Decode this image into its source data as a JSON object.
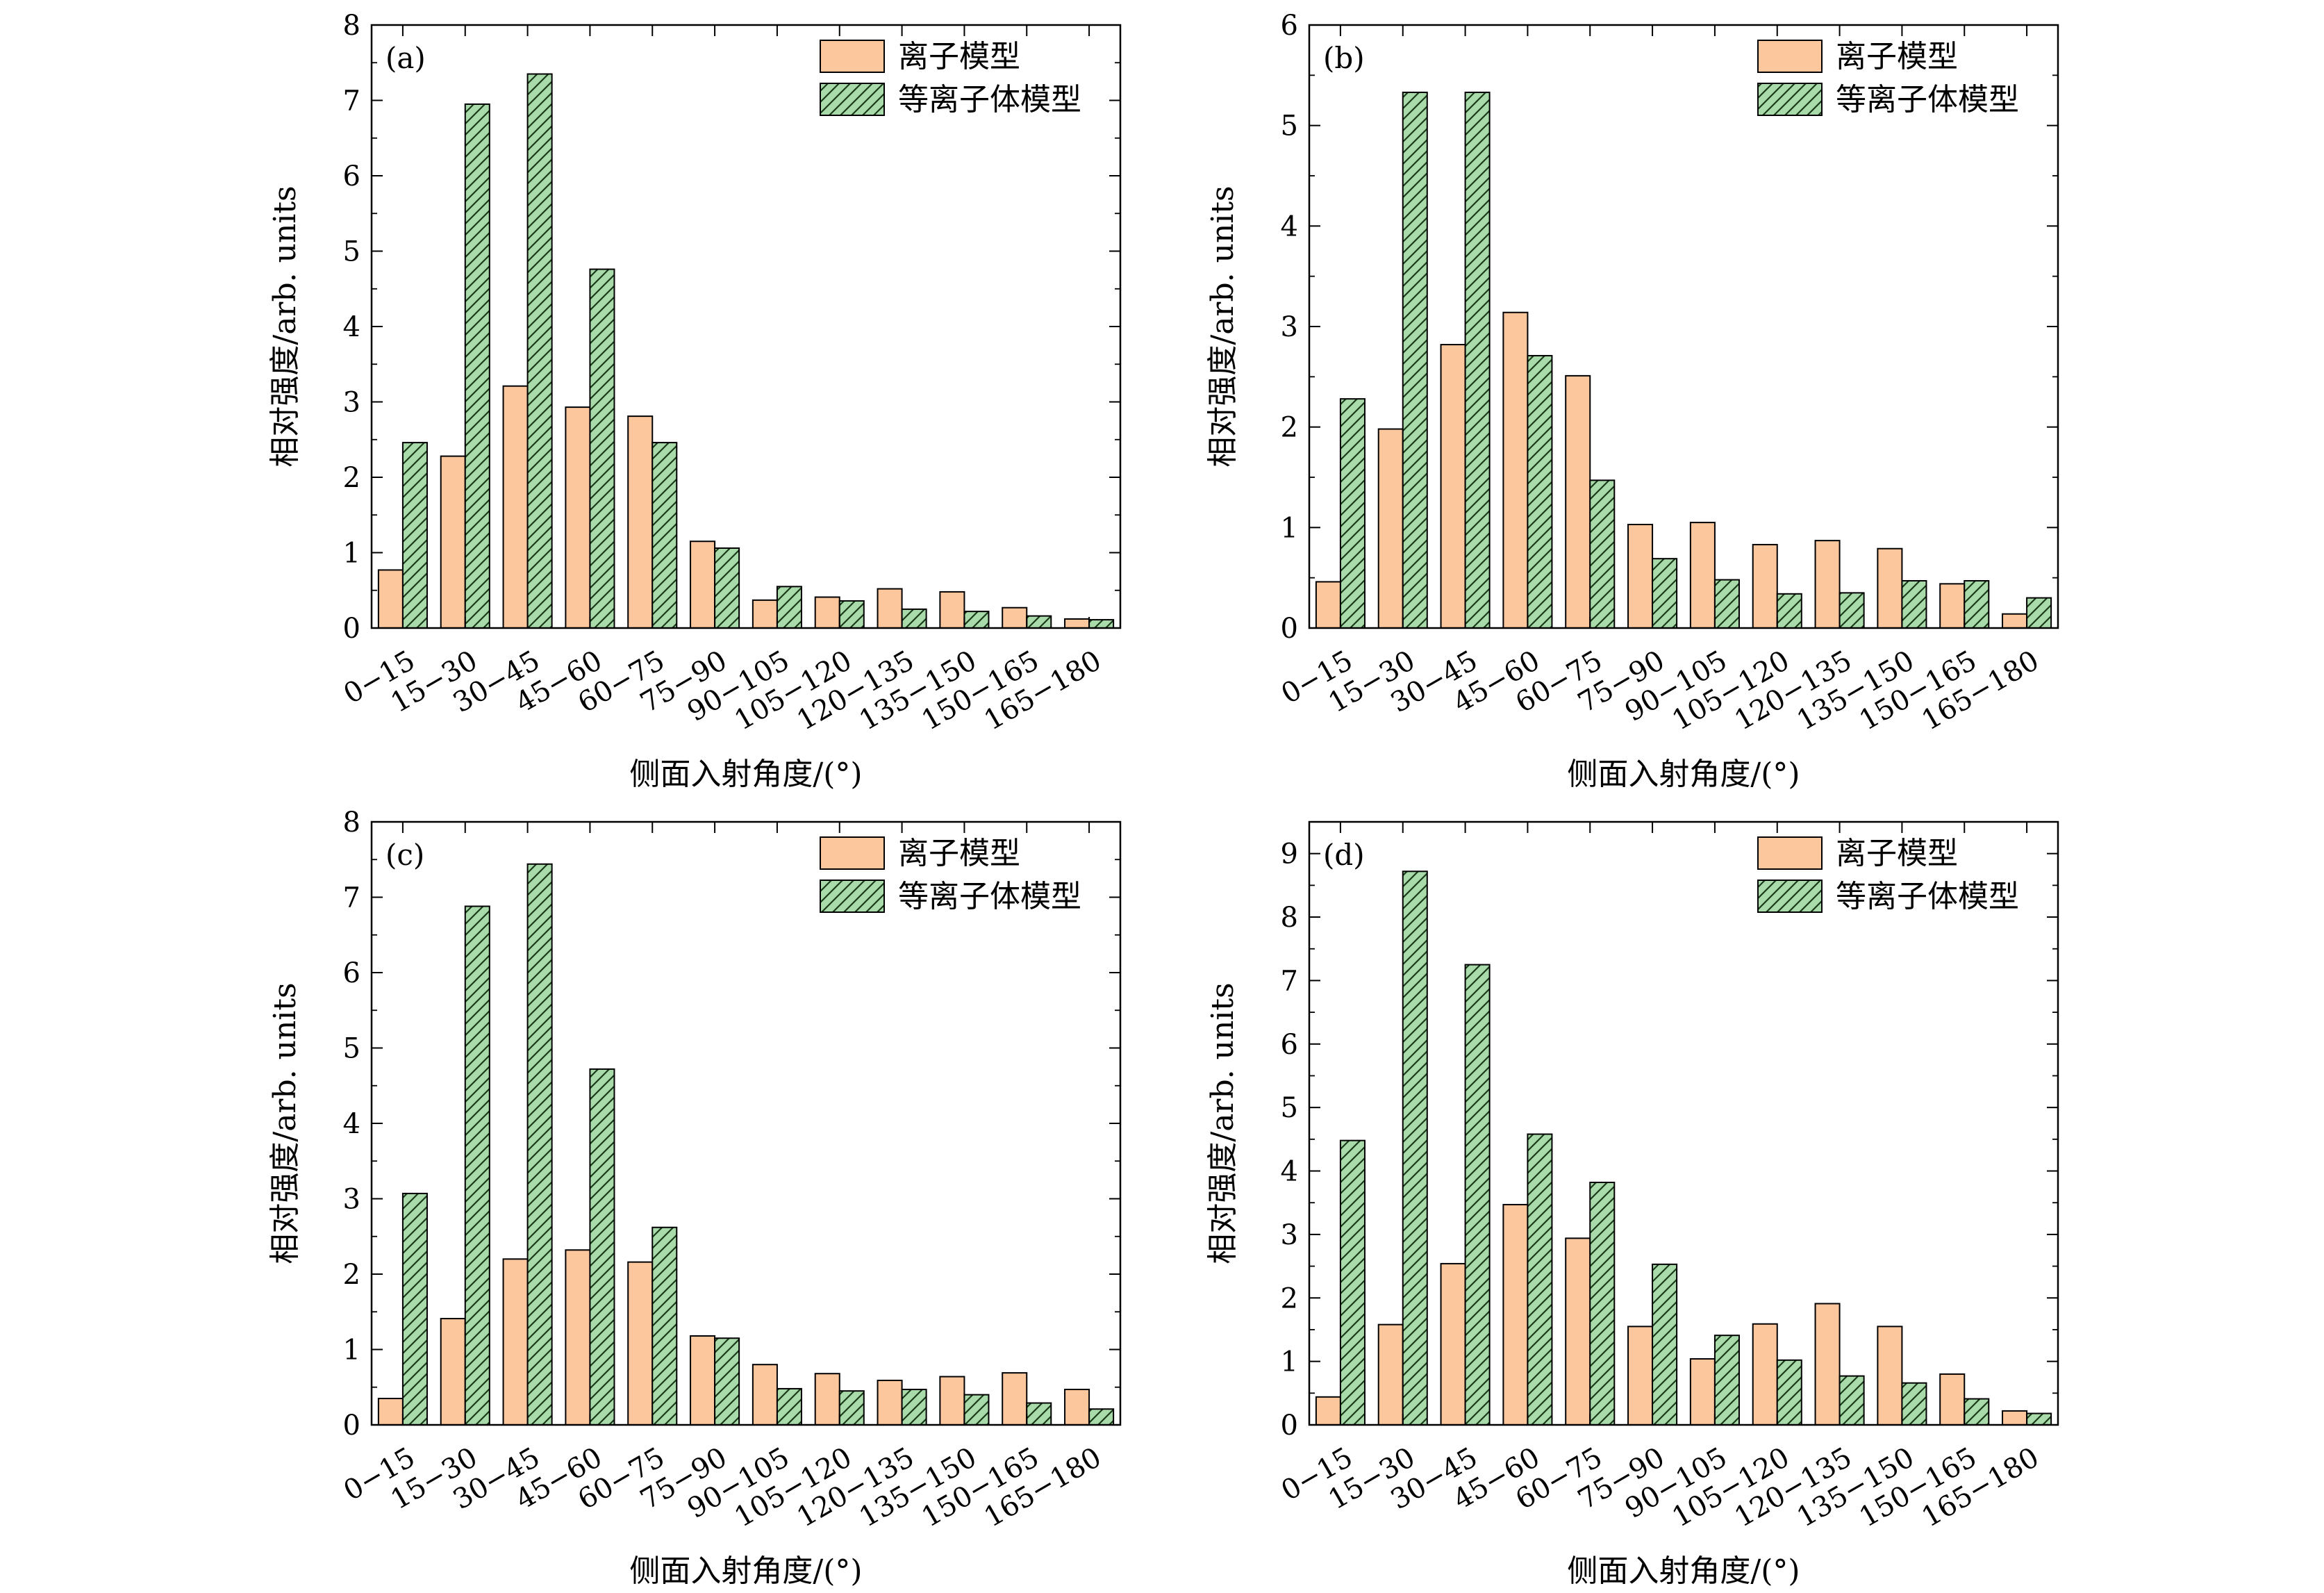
{
  "colors": {
    "ion_fill": "#fdc79e",
    "plasma_fill": "#a9dbaa",
    "bar_stroke": "#000000",
    "hatch": "#1b3a1b"
  },
  "legend": [
    "离子模型",
    "等离子体模型"
  ],
  "chart_data": [
    {
      "type": "bar",
      "panel": "(a)",
      "xlabel": "侧面入射角度/(°)",
      "ylabel": "相对强度/arb. units",
      "categories": [
        "0−15",
        "15−30",
        "30−45",
        "45−60",
        "60−75",
        "75−90",
        "90−105",
        "105−120",
        "120−135",
        "135−150",
        "150−165",
        "165−180"
      ],
      "ylim": [
        0,
        8
      ],
      "yticks": [
        0,
        1,
        2,
        3,
        4,
        5,
        6,
        7,
        8
      ],
      "series": [
        {
          "name": "离子模型",
          "values": [
            0.77,
            2.28,
            3.21,
            2.93,
            2.81,
            1.15,
            0.37,
            0.41,
            0.52,
            0.48,
            0.27,
            0.12
          ]
        },
        {
          "name": "等离子体模型",
          "values": [
            2.46,
            6.95,
            7.35,
            4.76,
            2.46,
            1.06,
            0.55,
            0.36,
            0.25,
            0.22,
            0.16,
            0.11
          ]
        }
      ],
      "legend_position": "top-right",
      "grid": false
    },
    {
      "type": "bar",
      "panel": "(b)",
      "xlabel": "侧面入射角度/(°)",
      "ylabel": "相对强度/arb. units",
      "categories": [
        "0−15",
        "15−30",
        "30−45",
        "45−60",
        "60−75",
        "75−90",
        "90−105",
        "105−120",
        "120−135",
        "135−150",
        "150−165",
        "165−180"
      ],
      "ylim": [
        0,
        6
      ],
      "yticks": [
        0,
        1,
        2,
        3,
        4,
        5,
        6
      ],
      "series": [
        {
          "name": "离子模型",
          "values": [
            0.46,
            1.98,
            2.82,
            3.14,
            2.51,
            1.03,
            1.05,
            0.83,
            0.87,
            0.79,
            0.44,
            0.14
          ]
        },
        {
          "name": "等离子体模型",
          "values": [
            2.28,
            5.33,
            5.33,
            2.71,
            1.47,
            0.69,
            0.48,
            0.34,
            0.35,
            0.47,
            0.47,
            0.3
          ]
        }
      ],
      "legend_position": "top-right",
      "grid": false
    },
    {
      "type": "bar",
      "panel": "(c)",
      "xlabel": "侧面入射角度/(°)",
      "ylabel": "相对强度/arb. units",
      "categories": [
        "0−15",
        "15−30",
        "30−45",
        "45−60",
        "60−75",
        "75−90",
        "90−105",
        "105−120",
        "120−135",
        "135−150",
        "150−165",
        "165−180"
      ],
      "ylim": [
        0,
        8
      ],
      "yticks": [
        0,
        1,
        2,
        3,
        4,
        5,
        6,
        7,
        8
      ],
      "series": [
        {
          "name": "离子模型",
          "values": [
            0.35,
            1.41,
            2.2,
            2.32,
            2.16,
            1.18,
            0.8,
            0.68,
            0.59,
            0.64,
            0.69,
            0.47
          ]
        },
        {
          "name": "等离子体模型",
          "values": [
            3.07,
            6.88,
            7.44,
            4.72,
            2.62,
            1.15,
            0.48,
            0.45,
            0.47,
            0.4,
            0.29,
            0.21
          ]
        }
      ],
      "legend_position": "top-right",
      "grid": false
    },
    {
      "type": "bar",
      "panel": "(d)",
      "xlabel": "侧面入射角度/(°)",
      "ylabel": "相对强度/arb. units",
      "categories": [
        "0−15",
        "15−30",
        "30−45",
        "45−60",
        "60−75",
        "75−90",
        "90−105",
        "105−120",
        "120−135",
        "135−150",
        "150−165",
        "165−180"
      ],
      "ylim": [
        0,
        9.5
      ],
      "yticks": [
        0,
        1,
        2,
        3,
        4,
        5,
        6,
        7,
        8,
        9
      ],
      "series": [
        {
          "name": "离子模型",
          "values": [
            0.44,
            1.58,
            2.54,
            3.47,
            2.94,
            1.55,
            1.04,
            1.59,
            1.91,
            1.55,
            0.8,
            0.22
          ]
        },
        {
          "name": "等离子体模型",
          "values": [
            4.48,
            8.72,
            7.25,
            4.58,
            3.82,
            2.53,
            1.41,
            1.02,
            0.77,
            0.66,
            0.41,
            0.18
          ]
        }
      ],
      "legend_position": "top-right",
      "grid": false
    }
  ]
}
